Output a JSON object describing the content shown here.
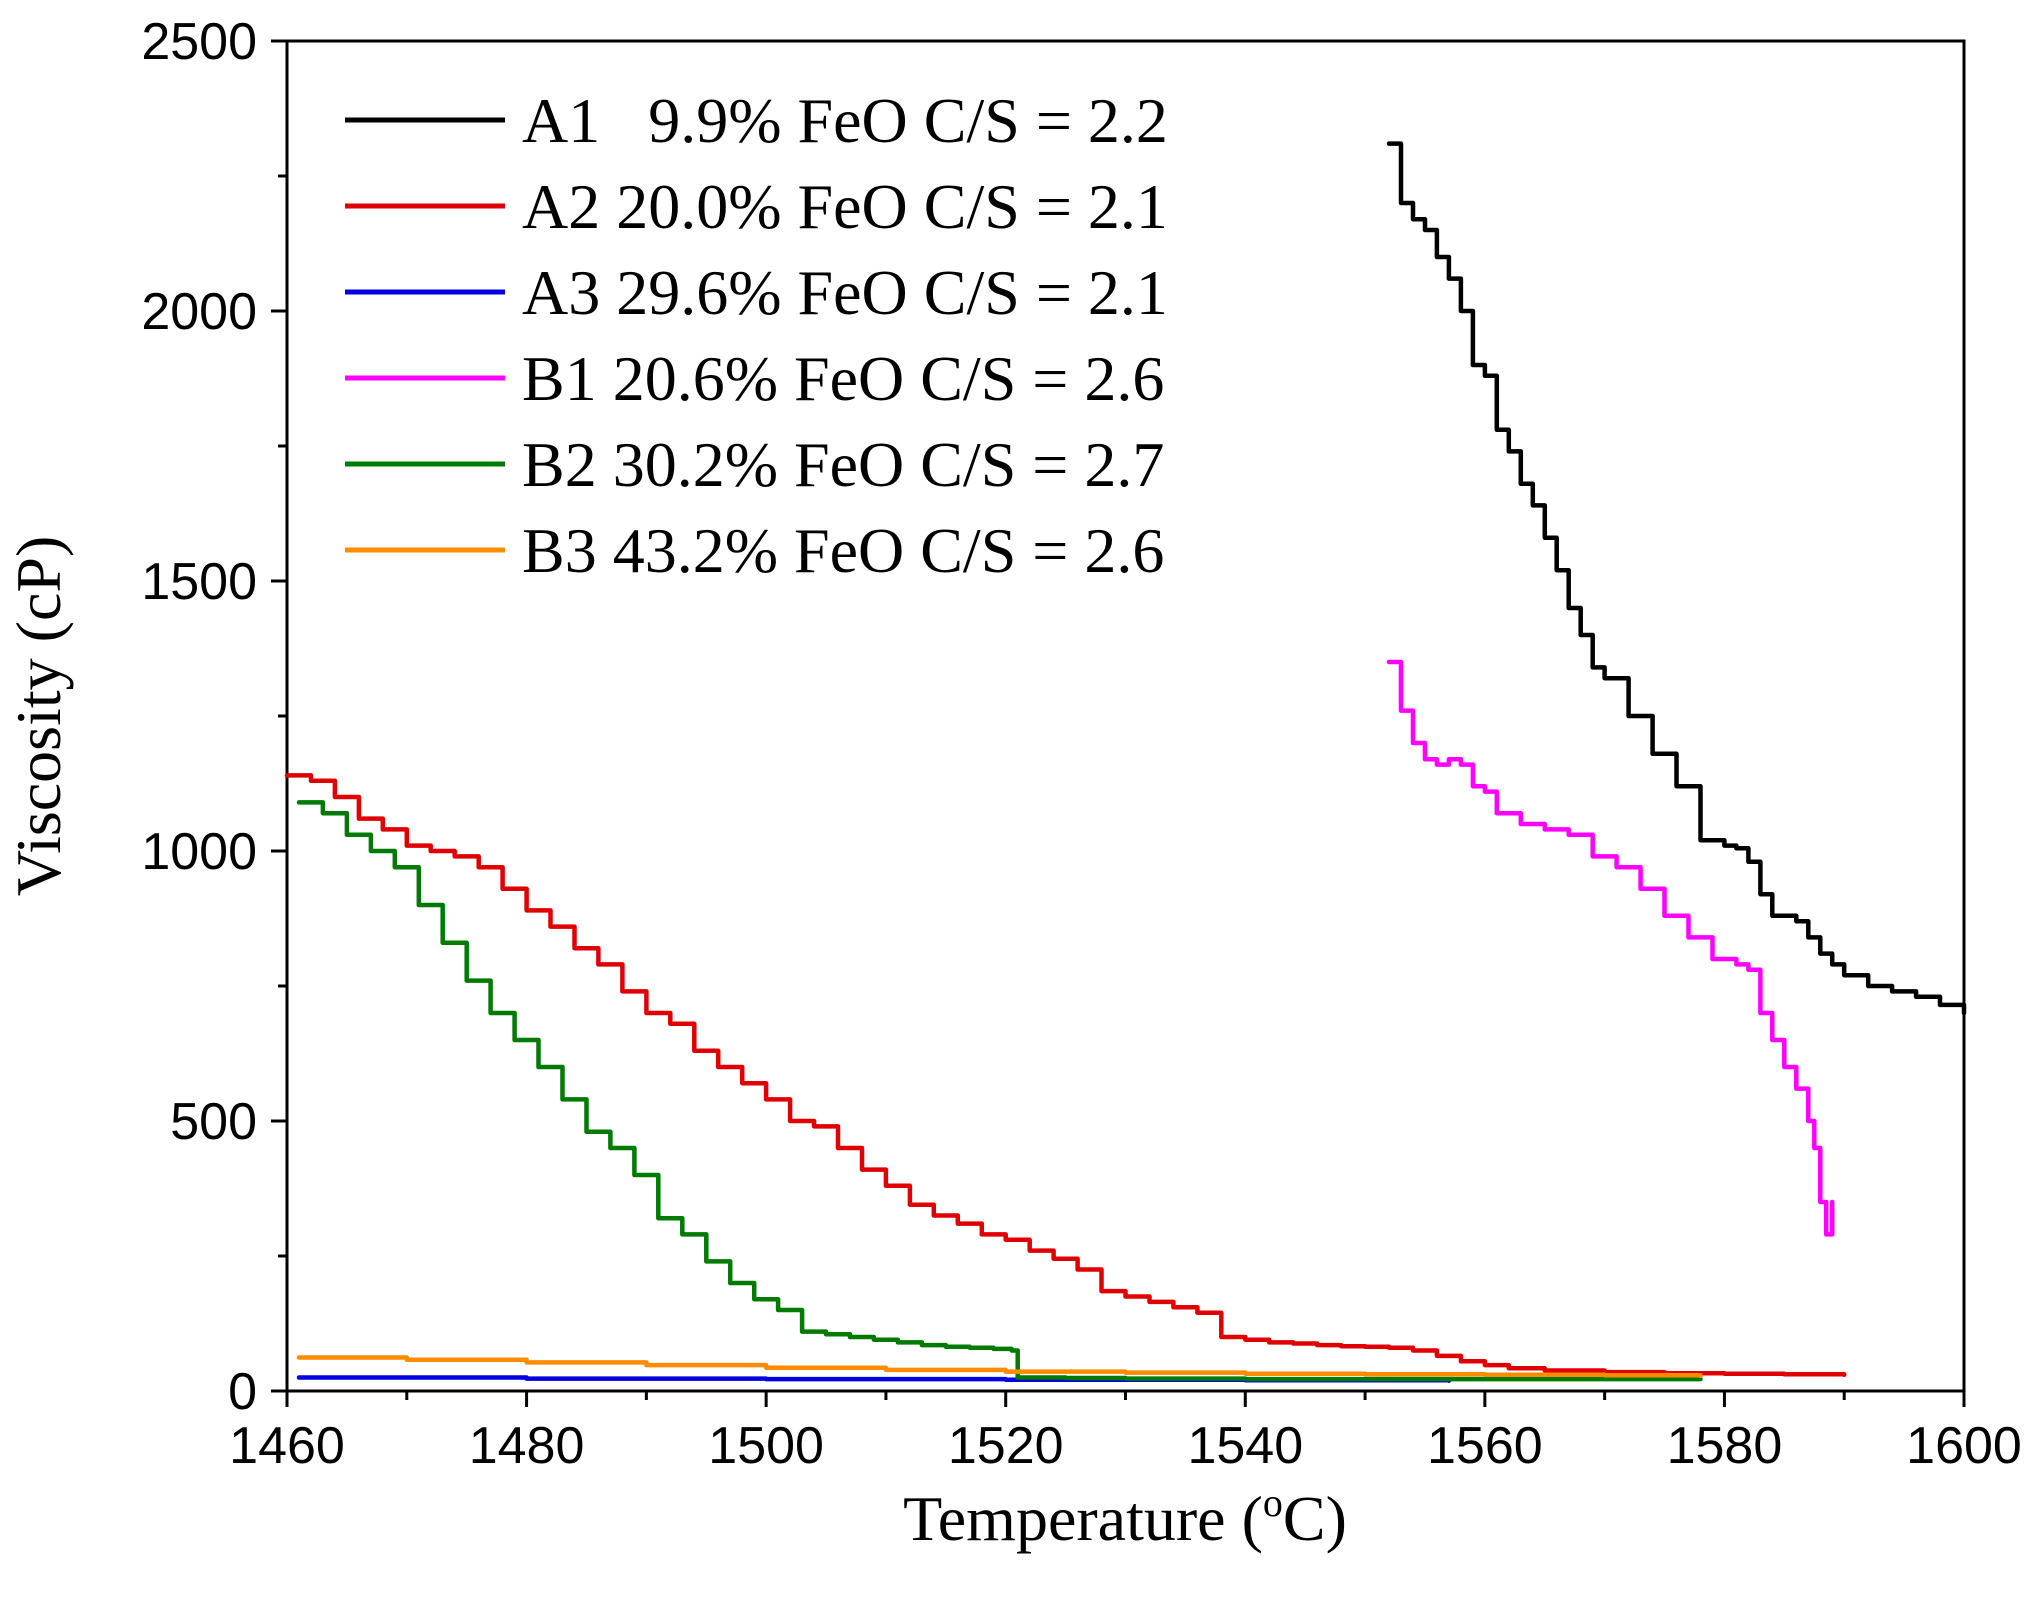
{
  "chart_data": {
    "type": "line",
    "title": "",
    "xlabel": "Temperature (",
    "xlabel_sup": "o",
    "xlabel_unit": "C)",
    "ylabel": "Viscosity (cP)",
    "xlim": [
      1460,
      1600
    ],
    "ylim": [
      0,
      2500
    ],
    "xticks": [
      1460,
      1480,
      1500,
      1520,
      1540,
      1560,
      1580,
      1600
    ],
    "yticks": [
      0,
      500,
      1000,
      1500,
      2000,
      2500
    ],
    "legend_position": "top-left",
    "series": [
      {
        "name": "A1   9.9% FeO C/S = 2.2",
        "color": "#000000",
        "x": [
          1552,
          1553,
          1554,
          1555,
          1556,
          1557,
          1558,
          1559,
          1560,
          1561,
          1562,
          1563,
          1564,
          1565,
          1566,
          1567,
          1568,
          1569,
          1570,
          1572,
          1574,
          1576,
          1578,
          1580,
          1581,
          1582,
          1583,
          1584,
          1586,
          1587,
          1588,
          1589,
          1590,
          1592,
          1594,
          1596,
          1598,
          1600
        ],
        "y": [
          2310,
          2200,
          2170,
          2150,
          2100,
          2060,
          2000,
          1900,
          1880,
          1780,
          1740,
          1680,
          1640,
          1580,
          1520,
          1450,
          1400,
          1340,
          1320,
          1250,
          1180,
          1120,
          1020,
          1010,
          1005,
          980,
          920,
          880,
          870,
          840,
          810,
          790,
          770,
          750,
          740,
          730,
          715,
          700
        ]
      },
      {
        "name": "A2 20.0% FeO C/S = 2.1",
        "color": "#e00000",
        "x": [
          1460,
          1462,
          1464,
          1466,
          1468,
          1470,
          1472,
          1474,
          1476,
          1478,
          1480,
          1482,
          1484,
          1486,
          1488,
          1490,
          1492,
          1494,
          1496,
          1498,
          1500,
          1502,
          1504,
          1506,
          1508,
          1510,
          1512,
          1514,
          1516,
          1518,
          1520,
          1522,
          1524,
          1526,
          1528,
          1530,
          1532,
          1534,
          1536,
          1538,
          1540,
          1542,
          1544,
          1546,
          1548,
          1550,
          1552,
          1554,
          1556,
          1558,
          1560,
          1562,
          1565,
          1570,
          1575,
          1580,
          1585,
          1590
        ],
        "y": [
          1140,
          1130,
          1100,
          1060,
          1040,
          1010,
          1000,
          990,
          970,
          930,
          890,
          860,
          820,
          790,
          740,
          700,
          680,
          630,
          600,
          570,
          540,
          500,
          490,
          450,
          410,
          380,
          345,
          325,
          310,
          290,
          280,
          260,
          245,
          225,
          185,
          175,
          165,
          155,
          145,
          100,
          95,
          90,
          88,
          85,
          83,
          82,
          80,
          75,
          65,
          55,
          48,
          42,
          38,
          35,
          33,
          32,
          31,
          30
        ]
      },
      {
        "name": "A3 29.6% FeO C/S = 2.1",
        "color": "#0000e0",
        "x": [
          1461,
          1480,
          1500,
          1520,
          1540,
          1557
        ],
        "y": [
          25,
          23,
          22,
          21,
          20,
          19
        ]
      },
      {
        "name": "B1 20.6% FeO C/S = 2.6",
        "color": "#ff00ff",
        "x": [
          1552,
          1553,
          1554,
          1555,
          1556,
          1557,
          1558,
          1559,
          1560,
          1561,
          1563,
          1565,
          1567,
          1569,
          1571,
          1573,
          1575,
          1577,
          1579,
          1581,
          1582,
          1583,
          1584,
          1585,
          1586,
          1587,
          1587.5,
          1588,
          1588.5,
          1589
        ],
        "y": [
          1350,
          1260,
          1200,
          1170,
          1160,
          1170,
          1160,
          1120,
          1110,
          1070,
          1050,
          1040,
          1030,
          990,
          970,
          930,
          880,
          840,
          800,
          790,
          780,
          700,
          650,
          600,
          560,
          500,
          450,
          350,
          290,
          350
        ]
      },
      {
        "name": "B2 30.2% FeO C/S = 2.7",
        "color": "#007a00",
        "x": [
          1461,
          1463,
          1465,
          1467,
          1469,
          1471,
          1473,
          1475,
          1477,
          1479,
          1481,
          1483,
          1485,
          1487,
          1489,
          1491,
          1493,
          1495,
          1497,
          1499,
          1501,
          1503,
          1505,
          1507,
          1509,
          1511,
          1513,
          1515,
          1517,
          1519,
          1520.5,
          1521,
          1525,
          1530,
          1535,
          1540,
          1550,
          1560,
          1570,
          1578
        ],
        "y": [
          1090,
          1070,
          1030,
          1000,
          970,
          900,
          830,
          760,
          700,
          650,
          600,
          540,
          480,
          450,
          400,
          320,
          290,
          240,
          200,
          170,
          150,
          110,
          105,
          100,
          95,
          90,
          85,
          82,
          80,
          78,
          75,
          25,
          24,
          23,
          23,
          22,
          22,
          22,
          22,
          22
        ]
      },
      {
        "name": "B3 43.2% FeO C/S = 2.6",
        "color": "#ff8c00",
        "x": [
          1461,
          1470,
          1480,
          1490,
          1500,
          1510,
          1520,
          1530,
          1540,
          1550,
          1560,
          1570,
          1578
        ],
        "y": [
          62,
          58,
          53,
          48,
          43,
          39,
          36,
          34,
          32,
          31,
          30,
          29,
          28
        ]
      }
    ]
  }
}
